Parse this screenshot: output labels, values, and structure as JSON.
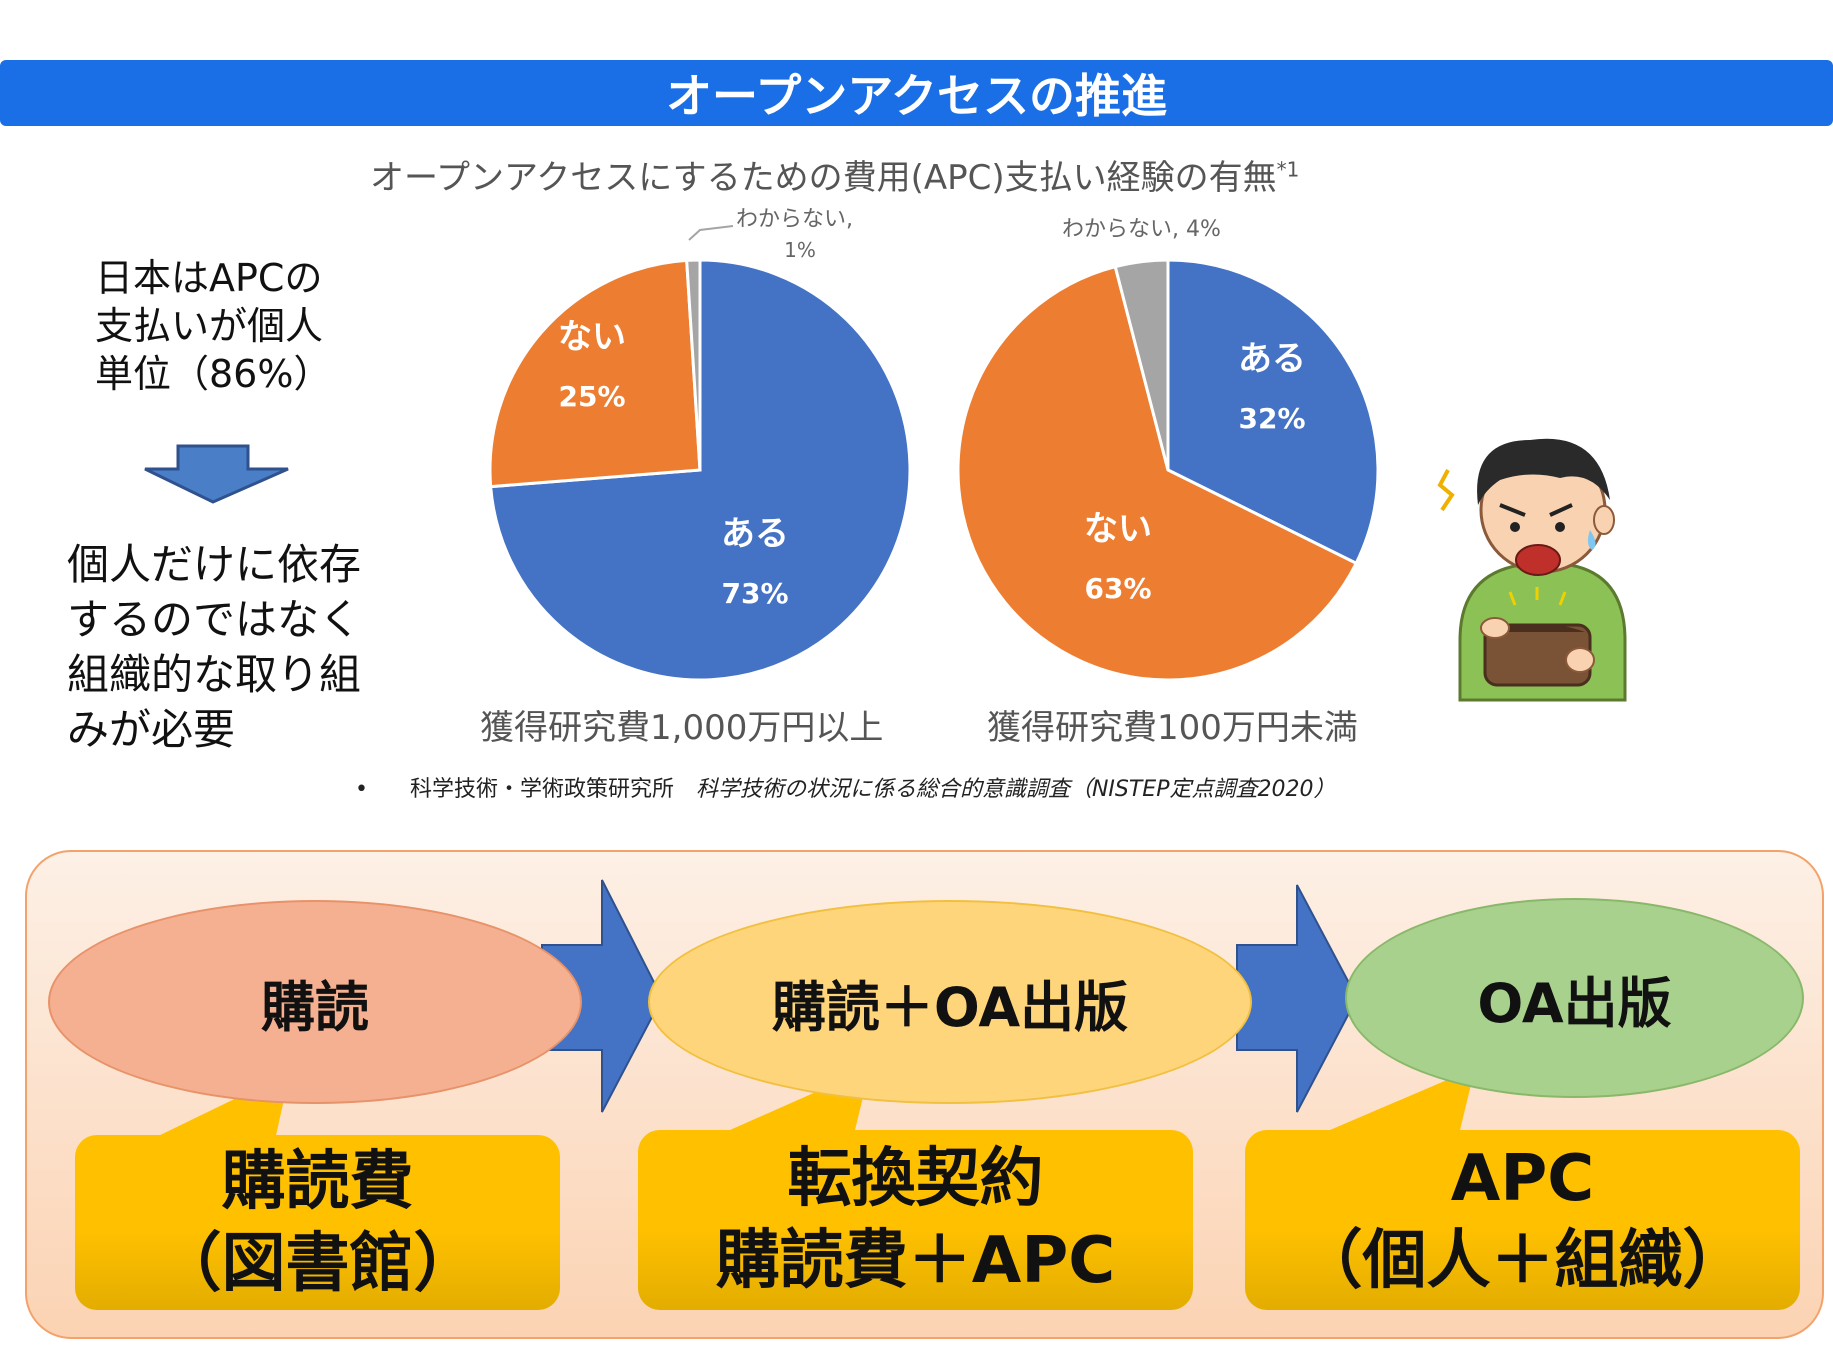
{
  "header": {
    "title": "オープンアクセスの推進"
  },
  "chart_title": {
    "text": "オープンアクセスにするための費用(APC)支払い経験の有無",
    "note": "*1"
  },
  "left_note": {
    "top_lines": [
      "日本はAPCの",
      "支払いが個人",
      "単位（86%）"
    ],
    "bottom_lines": [
      "個人だけに依存",
      "するのではなく",
      "組織的な取り組",
      "みが必要"
    ]
  },
  "chart_data": [
    {
      "type": "pie",
      "title": "獲得研究費1,000万円以上",
      "slices": [
        {
          "label": "ある",
          "value": 73,
          "value_label": "73%",
          "color": "#4472c4"
        },
        {
          "label": "ない",
          "value": 25,
          "value_label": "25%",
          "color": "#ed7d31"
        },
        {
          "label": "わからない,",
          "value": 1,
          "value_label": "1%",
          "color": "#a5a5a5"
        }
      ]
    },
    {
      "type": "pie",
      "title": "獲得研究費100万円未満",
      "slices": [
        {
          "label": "ある",
          "value": 32,
          "value_label": "32%",
          "color": "#4472c4"
        },
        {
          "label": "ない",
          "value": 63,
          "value_label": "63%",
          "color": "#ed7d31"
        },
        {
          "label": "わからない,",
          "value": 4,
          "value_label": "4%",
          "color": "#a5a5a5"
        }
      ]
    }
  ],
  "source": {
    "org": "科学技術・学術政策研究所",
    "title": "科学技術の状況に係る総合的意識調査（NISTEP定点調査2020）"
  },
  "flow": {
    "stages": [
      {
        "label": "購読",
        "cost_lines": [
          "購読費",
          "（図書館）"
        ],
        "color": "#f4b090"
      },
      {
        "label": "購読＋OA出版",
        "cost_lines": [
          "転換契約",
          "購読費＋APC"
        ],
        "color": "#fed57a"
      },
      {
        "label": "OA出版",
        "cost_lines": [
          "APC",
          "（個人＋組織）"
        ],
        "color": "#a9d18e"
      }
    ]
  },
  "colors": {
    "accent": "#1a6fe6",
    "arrow": "#4472c4",
    "box": "#ffc000"
  },
  "icons": {
    "down_arrow": "down-arrow-icon",
    "illustration": "worried-person-wallet-icon"
  }
}
